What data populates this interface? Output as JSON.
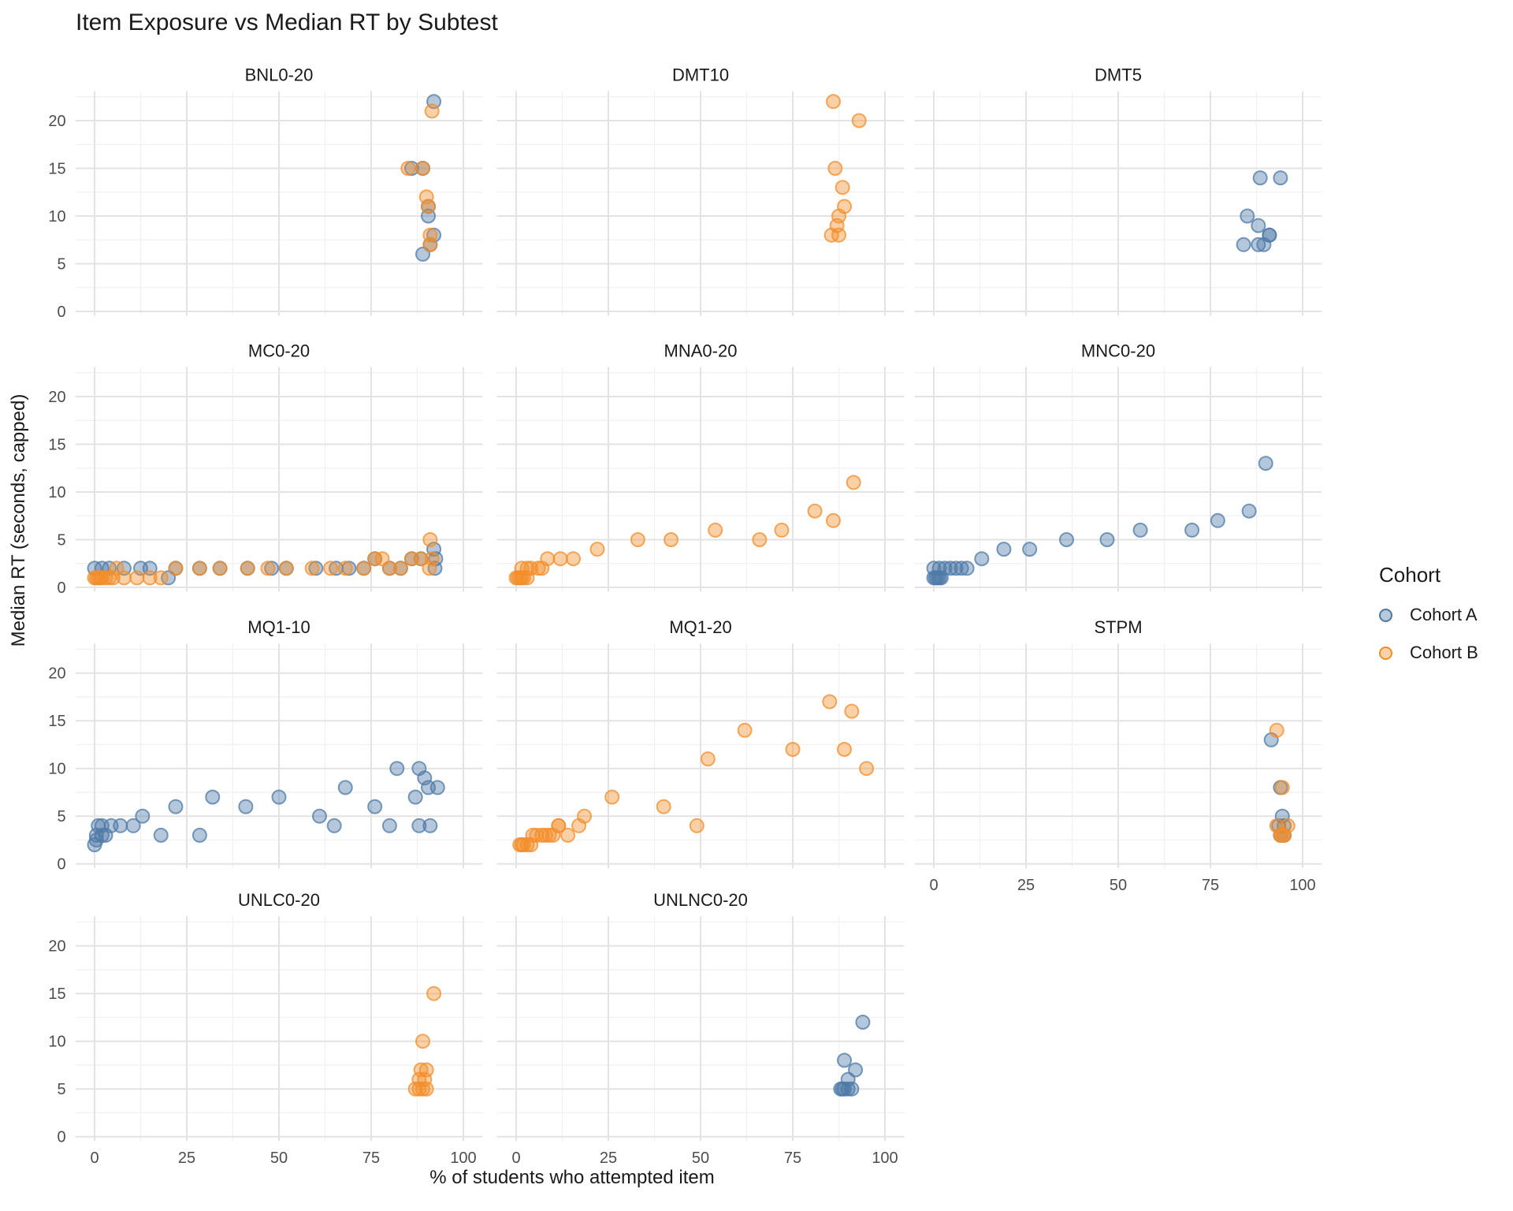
{
  "title": "Item Exposure vs Median RT by Subtest",
  "x_axis_title": "% of students who attempted item",
  "y_axis_title": "Median RT (seconds, capped)",
  "legend": {
    "title": "Cohort",
    "items": [
      {
        "label": "Cohort A",
        "color": "#4e79a7"
      },
      {
        "label": "Cohort B",
        "color": "#f28e2b"
      }
    ]
  },
  "colors": {
    "cohort_a": "#4e79a7",
    "cohort_b": "#f28e2b",
    "grid_major": "#e3e3e3",
    "grid_minor": "#f1f1f1",
    "tick_label": "#4d4d4d",
    "facet_label": "#1a1a1a"
  },
  "axes": {
    "x_ticks": [
      0,
      25,
      50,
      75,
      100
    ],
    "y_ticks": [
      0,
      5,
      10,
      15,
      20
    ],
    "x_minor": [
      12.5,
      37.5,
      62.5,
      87.5
    ],
    "y_minor": [
      2.5,
      7.5,
      12.5,
      17.5,
      22.5
    ],
    "x_range": [
      -5.2,
      105.2
    ],
    "y_range": [
      -0.45,
      23.1
    ]
  },
  "chart_data": {
    "type": "scatter",
    "facet_variable": "Subtest",
    "series_variable": "Cohort",
    "facets": [
      {
        "label": "BNL0-20",
        "row": 0,
        "col": 0,
        "series": {
          "Cohort A": [
            [
              92,
              22
            ],
            [
              86,
              15
            ],
            [
              89,
              15
            ],
            [
              90.5,
              11
            ],
            [
              90.5,
              10
            ],
            [
              92,
              8
            ],
            [
              91,
              7
            ],
            [
              89,
              6
            ]
          ],
          "Cohort B": [
            [
              91.5,
              21
            ],
            [
              85,
              15
            ],
            [
              89,
              15
            ],
            [
              90,
              12
            ],
            [
              90.5,
              11
            ],
            [
              91,
              8
            ],
            [
              91,
              7
            ]
          ]
        }
      },
      {
        "label": "DMT10",
        "row": 0,
        "col": 1,
        "series": {
          "Cohort A": [],
          "Cohort B": [
            [
              86,
              22
            ],
            [
              93,
              20
            ],
            [
              86.5,
              15
            ],
            [
              88.5,
              13
            ],
            [
              89,
              11
            ],
            [
              87.5,
              10
            ],
            [
              87,
              9
            ],
            [
              85.5,
              8
            ],
            [
              87.5,
              8
            ]
          ]
        }
      },
      {
        "label": "DMT5",
        "row": 0,
        "col": 2,
        "series": {
          "Cohort A": [
            [
              88.5,
              14
            ],
            [
              94,
              14
            ],
            [
              85,
              10
            ],
            [
              88,
              9
            ],
            [
              91,
              8
            ],
            [
              91,
              8
            ],
            [
              84,
              7
            ],
            [
              88,
              7
            ],
            [
              89.5,
              7
            ]
          ],
          "Cohort B": []
        }
      },
      {
        "label": "MC0-20",
        "row": 1,
        "col": 0,
        "series": {
          "Cohort A": [
            [
              0,
              2
            ],
            [
              2,
              2
            ],
            [
              4,
              2
            ],
            [
              8,
              2
            ],
            [
              12.5,
              2
            ],
            [
              15,
              2
            ],
            [
              20,
              1
            ],
            [
              22,
              2
            ],
            [
              28.5,
              2
            ],
            [
              34,
              2
            ],
            [
              41.5,
              2
            ],
            [
              48,
              2
            ],
            [
              52,
              2
            ],
            [
              60,
              2
            ],
            [
              65.5,
              2
            ],
            [
              69,
              2
            ],
            [
              73,
              2
            ],
            [
              80,
              2
            ],
            [
              83,
              2
            ],
            [
              76,
              3
            ],
            [
              86,
              3
            ],
            [
              88.5,
              3
            ],
            [
              92.5,
              3
            ],
            [
              92,
              4
            ],
            [
              92.3,
              2
            ]
          ],
          "Cohort B": [
            [
              0,
              1
            ],
            [
              0.5,
              1
            ],
            [
              1,
              1
            ],
            [
              1.5,
              1
            ],
            [
              2,
              1
            ],
            [
              3,
              1
            ],
            [
              4,
              1
            ],
            [
              5,
              1
            ],
            [
              8,
              1
            ],
            [
              11.5,
              1
            ],
            [
              15,
              1
            ],
            [
              18,
              1
            ],
            [
              6,
              2
            ],
            [
              22,
              2
            ],
            [
              28.5,
              2
            ],
            [
              34,
              2
            ],
            [
              41.5,
              2
            ],
            [
              47,
              2
            ],
            [
              52,
              2
            ],
            [
              59,
              2
            ],
            [
              64,
              2
            ],
            [
              68,
              2
            ],
            [
              73,
              2
            ],
            [
              80,
              2
            ],
            [
              83,
              2
            ],
            [
              76,
              3
            ],
            [
              78,
              3
            ],
            [
              86,
              3
            ],
            [
              88.5,
              3
            ],
            [
              91.5,
              3
            ],
            [
              91,
              5
            ],
            [
              90.8,
              2
            ]
          ]
        }
      },
      {
        "label": "MNA0-20",
        "row": 1,
        "col": 1,
        "series": {
          "Cohort A": [],
          "Cohort B": [
            [
              0,
              1
            ],
            [
              0.5,
              1
            ],
            [
              1,
              1
            ],
            [
              1.5,
              1
            ],
            [
              2,
              1
            ],
            [
              3,
              1
            ],
            [
              1.5,
              2
            ],
            [
              3,
              2
            ],
            [
              4,
              2
            ],
            [
              6,
              2
            ],
            [
              7,
              2
            ],
            [
              8.5,
              3
            ],
            [
              12,
              3
            ],
            [
              15.5,
              3
            ],
            [
              22,
              4
            ],
            [
              33,
              5
            ],
            [
              42,
              5
            ],
            [
              54,
              6
            ],
            [
              66,
              5
            ],
            [
              72,
              6
            ],
            [
              81,
              8
            ],
            [
              86,
              7
            ],
            [
              91.5,
              11
            ]
          ]
        }
      },
      {
        "label": "MNC0-20",
        "row": 1,
        "col": 2,
        "series": {
          "Cohort A": [
            [
              0,
              1
            ],
            [
              0.5,
              1
            ],
            [
              1,
              1
            ],
            [
              1.5,
              1
            ],
            [
              2,
              1
            ],
            [
              0,
              2
            ],
            [
              1.5,
              2
            ],
            [
              3,
              2
            ],
            [
              4.5,
              2
            ],
            [
              6,
              2
            ],
            [
              7.5,
              2
            ],
            [
              9,
              2
            ],
            [
              13,
              3
            ],
            [
              19,
              4
            ],
            [
              26,
              4
            ],
            [
              36,
              5
            ],
            [
              47,
              5
            ],
            [
              56,
              6
            ],
            [
              70,
              6
            ],
            [
              77,
              7
            ],
            [
              85.5,
              8
            ],
            [
              90,
              13
            ]
          ],
          "Cohort B": []
        }
      },
      {
        "label": "MQ1-10",
        "row": 2,
        "col": 0,
        "series": {
          "Cohort A": [
            [
              0,
              2
            ],
            [
              0.5,
              2.5
            ],
            [
              0.5,
              3
            ],
            [
              1,
              4
            ],
            [
              2,
              4
            ],
            [
              2,
              3
            ],
            [
              3,
              3
            ],
            [
              4.5,
              4
            ],
            [
              7,
              4
            ],
            [
              10.5,
              4
            ],
            [
              13,
              5
            ],
            [
              18,
              3
            ],
            [
              22,
              6
            ],
            [
              28.5,
              3
            ],
            [
              32,
              7
            ],
            [
              41,
              6
            ],
            [
              50,
              7
            ],
            [
              61,
              5
            ],
            [
              65,
              4
            ],
            [
              68,
              8
            ],
            [
              76,
              6
            ],
            [
              80,
              4
            ],
            [
              82,
              10
            ],
            [
              87,
              7
            ],
            [
              88,
              10
            ],
            [
              88,
              4
            ],
            [
              89.5,
              9
            ],
            [
              91,
              4
            ],
            [
              90.5,
              8
            ],
            [
              93,
              8
            ]
          ],
          "Cohort B": []
        }
      },
      {
        "label": "MQ1-20",
        "row": 2,
        "col": 1,
        "series": {
          "Cohort A": [],
          "Cohort B": [
            [
              1,
              2
            ],
            [
              1.5,
              2
            ],
            [
              2,
              2
            ],
            [
              3,
              2
            ],
            [
              4,
              2
            ],
            [
              4.5,
              3
            ],
            [
              5.5,
              3
            ],
            [
              7,
              3
            ],
            [
              8,
              3
            ],
            [
              9,
              3
            ],
            [
              10,
              3
            ],
            [
              11.5,
              4
            ],
            [
              11.5,
              4
            ],
            [
              14,
              3
            ],
            [
              17,
              4
            ],
            [
              18.5,
              5
            ],
            [
              26,
              7
            ],
            [
              40,
              6
            ],
            [
              49,
              4
            ],
            [
              52,
              11
            ],
            [
              62,
              14
            ],
            [
              75,
              12
            ],
            [
              85,
              17
            ],
            [
              89,
              12
            ],
            [
              91,
              16
            ],
            [
              95,
              10
            ]
          ]
        }
      },
      {
        "label": "STPM",
        "row": 2,
        "col": 2,
        "series": {
          "Cohort A": [
            [
              91.5,
              13
            ],
            [
              94,
              8
            ],
            [
              94.5,
              5
            ],
            [
              93.5,
              4
            ],
            [
              95,
              4
            ],
            [
              94,
              3
            ],
            [
              95,
              3
            ]
          ],
          "Cohort B": [
            [
              93,
              14
            ],
            [
              94.5,
              8
            ],
            [
              93,
              4
            ],
            [
              96,
              4
            ],
            [
              94,
              3
            ],
            [
              95,
              3
            ],
            [
              94.5,
              3
            ]
          ]
        }
      },
      {
        "label": "UNLC0-20",
        "row": 3,
        "col": 0,
        "series": {
          "Cohort A": [],
          "Cohort B": [
            [
              92,
              15
            ],
            [
              89,
              10
            ],
            [
              88.5,
              7
            ],
            [
              90,
              7
            ],
            [
              88,
              6
            ],
            [
              89.5,
              6
            ],
            [
              87,
              5
            ],
            [
              88,
              5
            ],
            [
              89,
              5
            ],
            [
              90,
              5
            ]
          ]
        }
      },
      {
        "label": "UNLNC0-20",
        "row": 3,
        "col": 1,
        "series": {
          "Cohort A": [
            [
              94,
              12
            ],
            [
              89,
              8
            ],
            [
              92,
              7
            ],
            [
              90,
              6
            ],
            [
              88,
              5
            ],
            [
              88.5,
              5
            ],
            [
              89,
              5
            ],
            [
              90,
              5
            ],
            [
              91,
              5
            ]
          ],
          "Cohort B": []
        }
      }
    ]
  }
}
